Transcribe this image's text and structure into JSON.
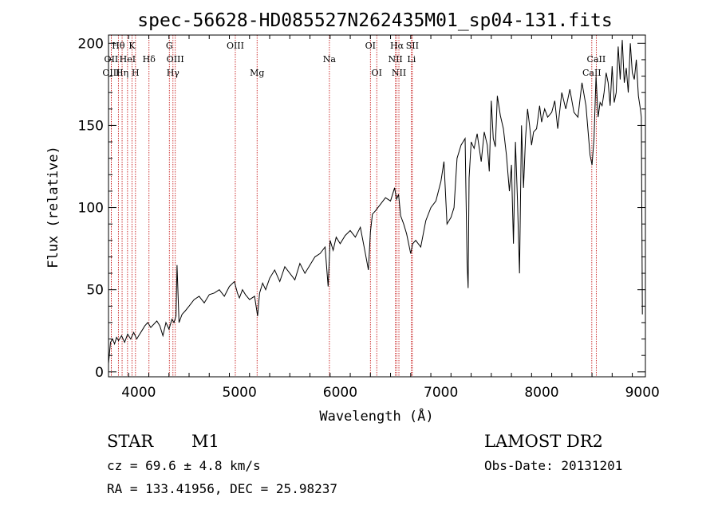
{
  "chart_data": {
    "type": "line",
    "title": "spec-56628-HD085527N262435M01_sp04-131.fits",
    "xlabel": "Wavelength (Å)",
    "ylabel": "Flux (relative)",
    "xlim": [
      3700,
      9030
    ],
    "ylim": [
      -3,
      205
    ],
    "xticks": [
      4000,
      5000,
      6000,
      7000,
      8000,
      9000
    ],
    "yticks": [
      0,
      50,
      100,
      150,
      200
    ],
    "series": [
      {
        "x": [
          3700,
          3720,
          3740,
          3760,
          3780,
          3800,
          3830,
          3860,
          3890,
          3920,
          3950,
          3980,
          4000,
          4030,
          4060,
          4090,
          4120,
          4150,
          4180,
          4210,
          4240,
          4270,
          4300,
          4330,
          4350,
          4370,
          4380,
          4400,
          4430,
          4460,
          4500,
          4550,
          4600,
          4650,
          4700,
          4750,
          4800,
          4850,
          4900,
          4950,
          4980,
          5000,
          5030,
          5060,
          5100,
          5150,
          5180,
          5200,
          5230,
          5260,
          5300,
          5350,
          5400,
          5450,
          5500,
          5550,
          5600,
          5650,
          5700,
          5750,
          5800,
          5850,
          5880,
          5900,
          5930,
          5960,
          6000,
          6050,
          6100,
          6150,
          6200,
          6250,
          6280,
          6300,
          6320,
          6350,
          6400,
          6450,
          6500,
          6540,
          6560,
          6580,
          6600,
          6630,
          6660,
          6700,
          6720,
          6750,
          6800,
          6850,
          6900,
          6950,
          7000,
          7030,
          7060,
          7100,
          7130,
          7160,
          7200,
          7240,
          7260,
          7270,
          7280,
          7300,
          7330,
          7360,
          7400,
          7430,
          7460,
          7480,
          7500,
          7520,
          7540,
          7560,
          7590,
          7620,
          7650,
          7680,
          7700,
          7720,
          7740,
          7760,
          7780,
          7800,
          7820,
          7840,
          7860,
          7880,
          7900,
          7920,
          7950,
          7980,
          8000,
          8030,
          8060,
          8100,
          8130,
          8160,
          8200,
          8240,
          8280,
          8320,
          8360,
          8400,
          8440,
          8480,
          8500,
          8520,
          8540,
          8560,
          8580,
          8600,
          8620,
          8640,
          8660,
          8680,
          8700,
          8720,
          8740,
          8760,
          8780,
          8800,
          8820,
          8840,
          8860,
          8880,
          8900,
          8920,
          8940,
          8960,
          8980,
          8990,
          9000
        ],
        "y": [
          5,
          18,
          20,
          17,
          21,
          19,
          22,
          18,
          23,
          20,
          24,
          20,
          22,
          25,
          28,
          30,
          27,
          29,
          31,
          28,
          22,
          30,
          26,
          32,
          30,
          34,
          65,
          30,
          35,
          37,
          40,
          44,
          46,
          42,
          47,
          48,
          50,
          46,
          52,
          55,
          48,
          45,
          50,
          47,
          44,
          46,
          34,
          48,
          54,
          50,
          57,
          62,
          55,
          64,
          60,
          56,
          66,
          60,
          65,
          70,
          72,
          76,
          52,
          80,
          74,
          82,
          78,
          83,
          86,
          82,
          88,
          72,
          62,
          85,
          96,
          98,
          102,
          106,
          104,
          112,
          105,
          108,
          95,
          90,
          84,
          72,
          78,
          80,
          76,
          92,
          100,
          104,
          116,
          128,
          90,
          94,
          100,
          130,
          138,
          142,
          66,
          51,
          118,
          140,
          136,
          145,
          128,
          146,
          138,
          122,
          165,
          142,
          137,
          168,
          156,
          148,
          132,
          110,
          126,
          78,
          140,
          105,
          60,
          150,
          112,
          142,
          160,
          150,
          138,
          146,
          148,
          162,
          152,
          160,
          155,
          158,
          165,
          148,
          170,
          160,
          172,
          158,
          155,
          176,
          162,
          132,
          126,
          142,
          180,
          155,
          164,
          162,
          170,
          182,
          176,
          162,
          186,
          164,
          170,
          198,
          178,
          202,
          176,
          185,
          170,
          200,
          182,
          178,
          190,
          168,
          160,
          155,
          35
        ]
      }
    ],
    "lines": [
      {
        "name": "Hθ",
        "x": 3798,
        "row": 1
      },
      {
        "name": "K",
        "x": 3934,
        "row": 1
      },
      {
        "name": "G",
        "x": 4304,
        "row": 1
      },
      {
        "name": "OIII",
        "x": 4959,
        "row": 1
      },
      {
        "name": "OI",
        "x": 6300,
        "row": 1
      },
      {
        "name": "Hα",
        "x": 6563,
        "row": 1
      },
      {
        "name": "SII",
        "x": 6716,
        "row": 1
      },
      {
        "name": "OII",
        "x": 3727,
        "row": 2
      },
      {
        "name": "HeI",
        "x": 3889,
        "row": 2
      },
      {
        "name": "Hδ",
        "x": 4102,
        "row": 2
      },
      {
        "name": "OIII",
        "x": 4363,
        "row": 2
      },
      {
        "name": "Na",
        "x": 5893,
        "row": 2
      },
      {
        "name": "NII",
        "x": 6548,
        "row": 2
      },
      {
        "name": "Li",
        "x": 6708,
        "row": 2
      },
      {
        "name": "CaII",
        "x": 8542,
        "row": 2
      },
      {
        "name": "OIII",
        "x": 3727,
        "row": 3
      },
      {
        "name": "Hη",
        "x": 3835,
        "row": 3
      },
      {
        "name": "H",
        "x": 3968,
        "row": 3
      },
      {
        "name": "Hγ",
        "x": 4340,
        "row": 3
      },
      {
        "name": "Mg",
        "x": 5175,
        "row": 3
      },
      {
        "name": "OI",
        "x": 6363,
        "row": 3
      },
      {
        "name": "NII",
        "x": 6583,
        "row": 3
      },
      {
        "name": "CaII",
        "x": 8498,
        "row": 3
      }
    ]
  },
  "info": {
    "class_label": "STAR",
    "subclass": "M1",
    "survey": "LAMOST DR2",
    "cz": "cz = 69.6 ± 4.8 km/s",
    "obs_date": "Obs-Date: 20131201",
    "radec": "RA = 133.41956, DEC =  25.98237"
  },
  "colors": {
    "spectrum": "#000000",
    "line_markers": "#c00000",
    "axes": "#000000",
    "background": "#ffffff"
  }
}
